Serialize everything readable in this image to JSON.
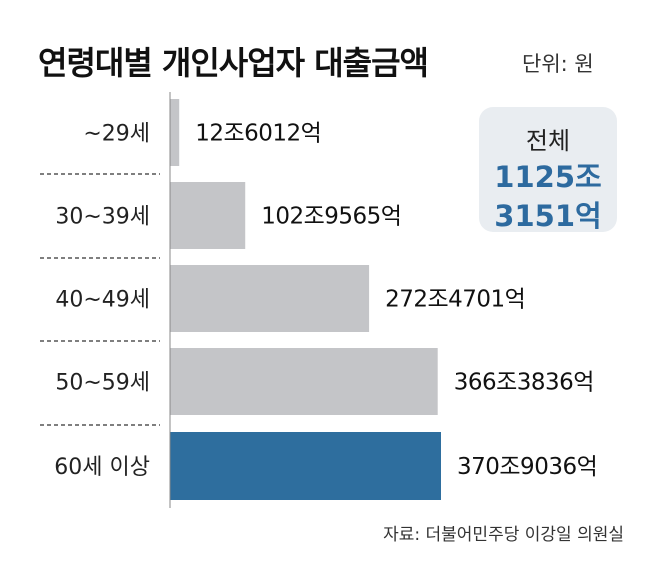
{
  "title": "연령대별 개인사업자 대출금액",
  "unit": "단위: 원",
  "total": {
    "label": "전체",
    "value_line1": "1125조",
    "value_line2": "3151억"
  },
  "source": "자료: 더불어민주당 이강일 의원실",
  "colors": {
    "bar": "#c4c5c8",
    "highlight": "#2e6e9e",
    "total_text": "#2d6a9f",
    "total_bg": "#e9edf1"
  },
  "chart_data": {
    "type": "bar",
    "orientation": "horizontal",
    "unit": "원",
    "categories": [
      "~29세",
      "30~39세",
      "40~49세",
      "50~59세",
      "60세 이상"
    ],
    "values": [
      12.6012,
      102.9565,
      272.4701,
      366.3836,
      370.9036
    ],
    "value_unit": "조",
    "labels": [
      "12조6012억",
      "102조9565억",
      "272조4701억",
      "366조3836억",
      "370조9036억"
    ],
    "highlight_index": 4,
    "xlim": [
      0,
      370.9036
    ]
  }
}
